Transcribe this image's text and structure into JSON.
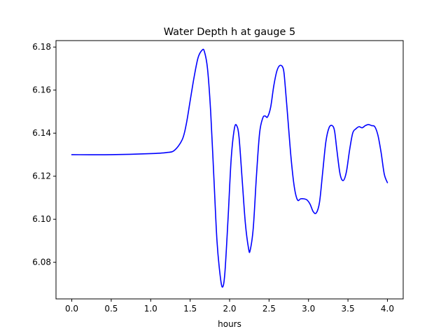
{
  "chart_data": {
    "type": "line",
    "title": "Water Depth h at gauge 5",
    "xlabel": "hours",
    "ylabel": "",
    "xlim": [
      -0.2,
      4.2
    ],
    "ylim": [
      6.063,
      6.183
    ],
    "xticks": [
      0.0,
      0.5,
      1.0,
      1.5,
      2.0,
      2.5,
      3.0,
      3.5,
      4.0
    ],
    "xtick_labels": [
      "0.0",
      "0.5",
      "1.0",
      "1.5",
      "2.0",
      "2.5",
      "3.0",
      "3.5",
      "4.0"
    ],
    "yticks": [
      6.08,
      6.1,
      6.12,
      6.14,
      6.16,
      6.18
    ],
    "ytick_labels": [
      "6.08",
      "6.10",
      "6.12",
      "6.14",
      "6.16",
      "6.18"
    ],
    "grid": false,
    "series": [
      {
        "name": "",
        "color": "#0000ff",
        "x": [
          0.0,
          0.5,
          1.0,
          1.2,
          1.3,
          1.4,
          1.45,
          1.5,
          1.55,
          1.6,
          1.65,
          1.68,
          1.72,
          1.76,
          1.8,
          1.84,
          1.88,
          1.91,
          1.94,
          1.98,
          2.02,
          2.06,
          2.09,
          2.12,
          2.16,
          2.2,
          2.24,
          2.26,
          2.3,
          2.34,
          2.38,
          2.42,
          2.45,
          2.48,
          2.52,
          2.56,
          2.6,
          2.64,
          2.68,
          2.7,
          2.74,
          2.78,
          2.82,
          2.86,
          2.9,
          2.94,
          2.98,
          3.02,
          3.06,
          3.1,
          3.14,
          3.18,
          3.22,
          3.26,
          3.3,
          3.33,
          3.36,
          3.4,
          3.44,
          3.48,
          3.52,
          3.56,
          3.6,
          3.64,
          3.68,
          3.72,
          3.76,
          3.8,
          3.84,
          3.88,
          3.92,
          3.96,
          4.0
        ],
        "y": [
          6.13,
          6.13,
          6.1305,
          6.131,
          6.132,
          6.137,
          6.144,
          6.155,
          6.166,
          6.175,
          6.1785,
          6.178,
          6.17,
          6.15,
          6.12,
          6.09,
          6.074,
          6.0685,
          6.075,
          6.1,
          6.128,
          6.142,
          6.1435,
          6.138,
          6.118,
          6.098,
          6.0865,
          6.0855,
          6.096,
          6.12,
          6.14,
          6.147,
          6.148,
          6.1475,
          6.152,
          6.162,
          6.169,
          6.1715,
          6.17,
          6.164,
          6.146,
          6.128,
          6.115,
          6.109,
          6.1095,
          6.1095,
          6.109,
          6.107,
          6.1035,
          6.103,
          6.108,
          6.122,
          6.136,
          6.1425,
          6.1435,
          6.141,
          6.132,
          6.121,
          6.118,
          6.122,
          6.132,
          6.14,
          6.142,
          6.143,
          6.1425,
          6.1435,
          6.144,
          6.1435,
          6.143,
          6.139,
          6.131,
          6.121,
          6.117
        ]
      }
    ]
  }
}
